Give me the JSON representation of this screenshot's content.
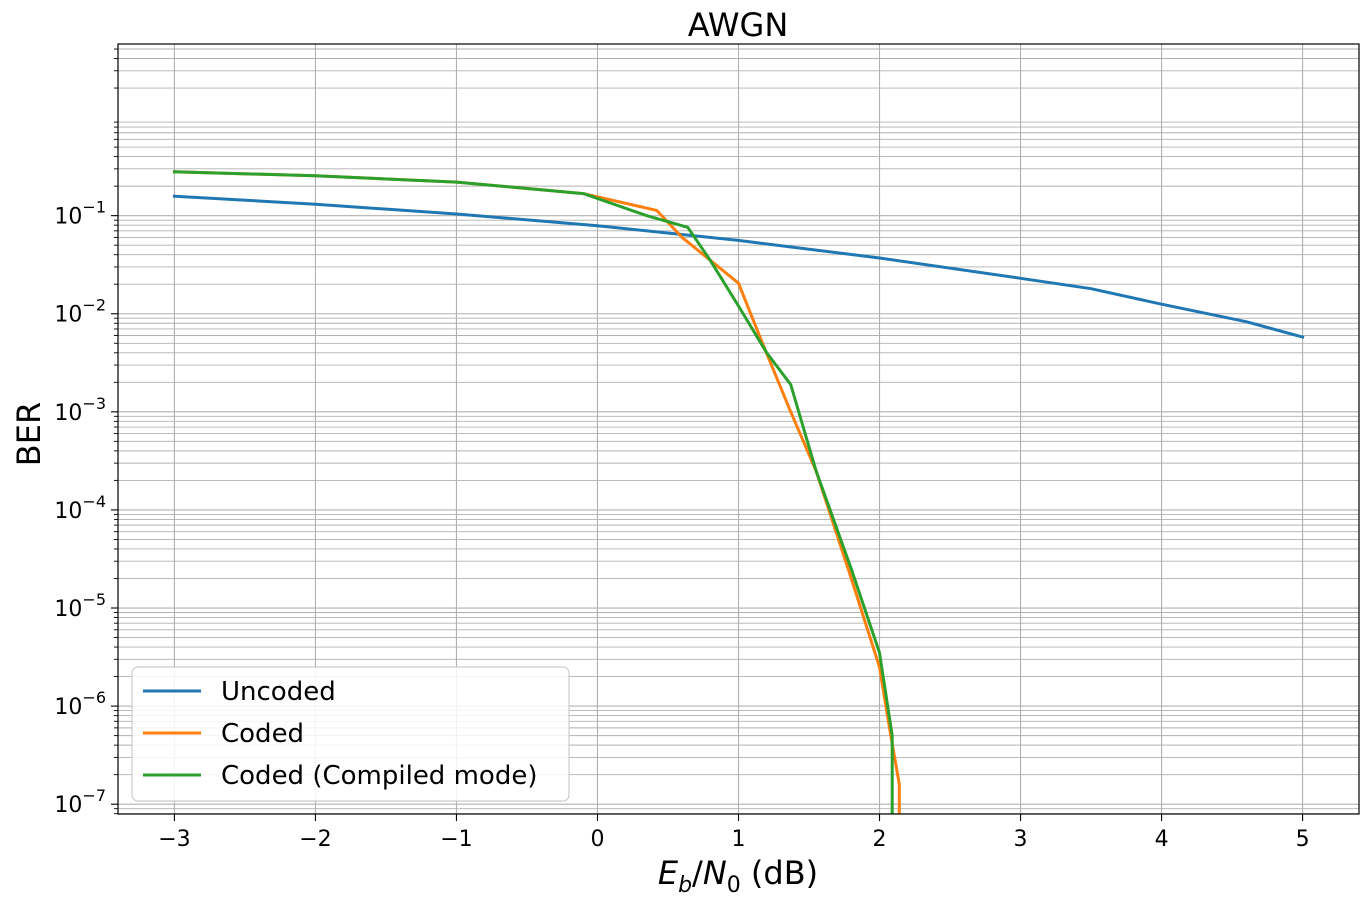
{
  "chart_data": {
    "type": "line",
    "title": "AWGN",
    "xlabel_parts": {
      "E": "E",
      "b": "b",
      "slash": "/",
      "N": "N",
      "zero": "0",
      "unit": " (dB)"
    },
    "ylabel": "BER",
    "xlim": [
      -3.4,
      5.4
    ],
    "ylim_log10": [
      -7.1,
      0.75
    ],
    "y_scale": "log",
    "grid": "major and minor",
    "legend_position": "lower-left",
    "xticks": [
      -3,
      -2,
      -1,
      0,
      1,
      2,
      3,
      4,
      5
    ],
    "xtick_labels": [
      "−3",
      "−2",
      "−1",
      "0",
      "1",
      "2",
      "3",
      "4",
      "5"
    ],
    "yticks_exp": [
      -1,
      -2,
      -3,
      -4,
      -5,
      -6,
      -7
    ],
    "ytick_labels": [
      {
        "base": "10",
        "exp": "−1"
      },
      {
        "base": "10",
        "exp": "−2"
      },
      {
        "base": "10",
        "exp": "−3"
      },
      {
        "base": "10",
        "exp": "−4"
      },
      {
        "base": "10",
        "exp": "−5"
      },
      {
        "base": "10",
        "exp": "−6"
      },
      {
        "base": "10",
        "exp": "−7"
      }
    ],
    "series": [
      {
        "name": "Uncoded",
        "color": "#1f77b4",
        "points": [
          [
            -3.0,
            0.158
          ],
          [
            -2.0,
            0.131
          ],
          [
            -1.0,
            0.104
          ],
          [
            0.0,
            0.079
          ],
          [
            1.0,
            0.056
          ],
          [
            2.0,
            0.037
          ],
          [
            3.0,
            0.023
          ],
          [
            3.5,
            0.018
          ],
          [
            4.0,
            0.0125
          ],
          [
            4.6,
            0.0083
          ],
          [
            5.0,
            0.0058
          ]
        ]
      },
      {
        "name": "Coded",
        "color": "#ff7f0e",
        "points": [
          [
            -3.0,
            0.28
          ],
          [
            -2.0,
            0.255
          ],
          [
            -1.0,
            0.22
          ],
          [
            -0.1,
            0.168
          ],
          [
            0.42,
            0.113
          ],
          [
            0.6,
            0.06
          ],
          [
            1.0,
            0.0205
          ],
          [
            1.17,
            0.005
          ],
          [
            1.37,
            0.001
          ],
          [
            1.55,
            0.00025
          ],
          [
            1.8,
            2e-05
          ],
          [
            2.0,
            2.5e-06
          ],
          [
            2.08,
            5e-07
          ],
          [
            2.14,
            1.6e-07
          ],
          [
            2.14,
            8e-08
          ]
        ]
      },
      {
        "name": "Coded (Compiled mode)",
        "color": "#2ca02c",
        "points": [
          [
            -3.0,
            0.28
          ],
          [
            -2.0,
            0.255
          ],
          [
            -1.0,
            0.22
          ],
          [
            -0.1,
            0.168
          ],
          [
            0.35,
            0.1
          ],
          [
            0.64,
            0.076
          ],
          [
            0.8,
            0.035
          ],
          [
            1.0,
            0.012
          ],
          [
            1.2,
            0.004
          ],
          [
            1.37,
            0.0019
          ],
          [
            1.55,
            0.00025
          ],
          [
            1.8,
            2.5e-05
          ],
          [
            2.0,
            3.5e-06
          ],
          [
            2.09,
            5e-07
          ],
          [
            2.09,
            8e-08
          ]
        ]
      }
    ]
  }
}
